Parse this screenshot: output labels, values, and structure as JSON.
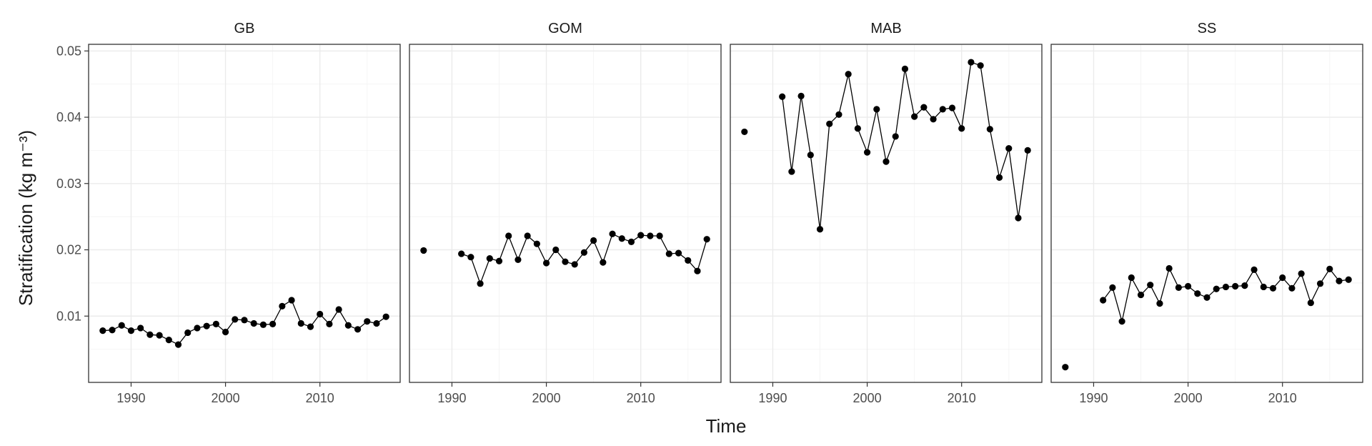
{
  "chart_data": {
    "type": "line",
    "xlabel": "Time",
    "ylabel": "Stratification (kg m⁻³)",
    "ylim": [
      0.0,
      0.051
    ],
    "xlim": [
      1985.5,
      2018.5
    ],
    "x_ticks": [
      1990,
      2000,
      2010
    ],
    "y_ticks": [
      0.01,
      0.02,
      0.03,
      0.04,
      0.05
    ],
    "y_tick_labels": [
      "0.01",
      "0.02",
      "0.03",
      "0.04",
      "0.05"
    ],
    "grid": true,
    "panels": [
      {
        "name": "GB",
        "x": [
          1987,
          1988,
          1989,
          1990,
          1991,
          1992,
          1993,
          1994,
          1995,
          1996,
          1997,
          1998,
          1999,
          2000,
          2001,
          2002,
          2003,
          2004,
          2005,
          2006,
          2007,
          2008,
          2009,
          2010,
          2011,
          2012,
          2013,
          2014,
          2015,
          2016,
          2017
        ],
        "y": [
          0.0078,
          0.0079,
          0.0086,
          0.0078,
          0.0082,
          0.0072,
          0.0071,
          0.0064,
          0.0057,
          0.0075,
          0.0082,
          0.0085,
          0.0088,
          0.0076,
          0.0095,
          0.0094,
          0.0089,
          0.0087,
          0.0088,
          0.0115,
          0.0124,
          0.0089,
          0.0084,
          0.0103,
          0.0088,
          0.011,
          0.0086,
          0.008,
          0.0092,
          0.0089,
          0.0099
        ]
      },
      {
        "name": "GOM",
        "x": [
          1987,
          1991,
          1992,
          1993,
          1994,
          1995,
          1996,
          1997,
          1998,
          1999,
          2000,
          2001,
          2002,
          2003,
          2004,
          2005,
          2006,
          2007,
          2008,
          2009,
          2010,
          2011,
          2012,
          2013,
          2014,
          2015,
          2016,
          2017
        ],
        "y": [
          0.0199,
          0.0194,
          0.0189,
          0.0149,
          0.0187,
          0.0183,
          0.0221,
          0.0185,
          0.0221,
          0.0209,
          0.018,
          0.02,
          0.0182,
          0.0178,
          0.0196,
          0.0214,
          0.0181,
          0.0224,
          0.0217,
          0.0212,
          0.0222,
          0.0221,
          0.0221,
          0.0194,
          0.0195,
          0.0184,
          0.0168,
          0.0216
        ]
      },
      {
        "name": "MAB",
        "x": [
          1987,
          1991,
          1992,
          1993,
          1994,
          1995,
          1996,
          1997,
          1998,
          1999,
          2000,
          2001,
          2002,
          2003,
          2004,
          2005,
          2006,
          2007,
          2008,
          2009,
          2010,
          2011,
          2012,
          2013,
          2014,
          2015,
          2016,
          2017
        ],
        "y": [
          0.0378,
          0.0431,
          0.0318,
          0.0432,
          0.0343,
          0.0231,
          0.039,
          0.0404,
          0.0465,
          0.0383,
          0.0347,
          0.0412,
          0.0333,
          0.0371,
          0.0473,
          0.0401,
          0.0415,
          0.0397,
          0.0412,
          0.0414,
          0.0383,
          0.0483,
          0.0478,
          0.0382,
          0.0309,
          0.0353,
          0.0248,
          0.035
        ]
      },
      {
        "name": "SS",
        "x": [
          1987,
          1991,
          1992,
          1993,
          1994,
          1995,
          1996,
          1997,
          1998,
          1999,
          2000,
          2001,
          2002,
          2003,
          2004,
          2005,
          2006,
          2007,
          2008,
          2009,
          2010,
          2011,
          2012,
          2013,
          2014,
          2015,
          2016,
          2017
        ],
        "y": [
          0.0023,
          0.0124,
          0.0143,
          0.0092,
          0.0158,
          0.0132,
          0.0147,
          0.0119,
          0.0172,
          0.0143,
          0.0145,
          0.0134,
          0.0128,
          0.0141,
          0.0144,
          0.0145,
          0.0146,
          0.017,
          0.0144,
          0.0142,
          0.0158,
          0.0142,
          0.0164,
          0.012,
          0.0149,
          0.0171,
          0.0153,
          0.0155
        ]
      }
    ]
  }
}
